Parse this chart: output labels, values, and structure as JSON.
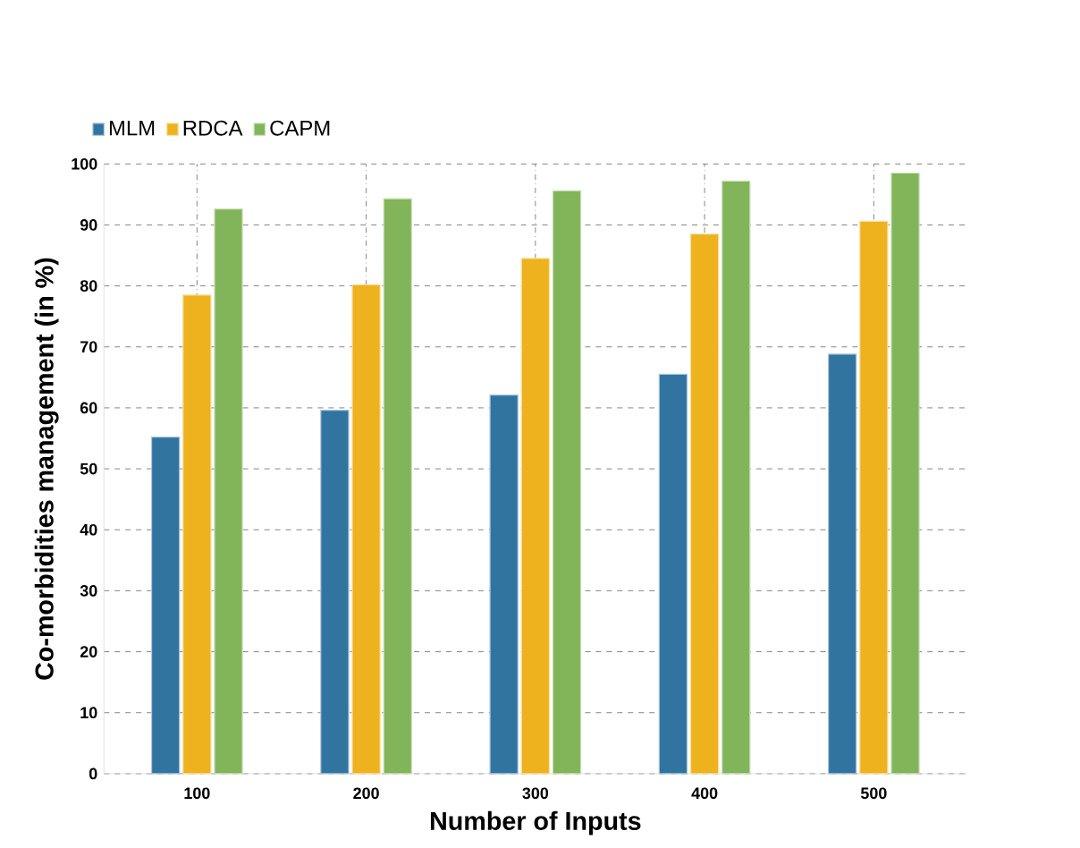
{
  "chart_data": {
    "type": "bar",
    "xlabel": "Number of Inputs",
    "ylabel": "Co-morbidities management (in %)",
    "categories": [
      "100",
      "200",
      "300",
      "400",
      "500"
    ],
    "series": [
      {
        "name": "MLM",
        "color": "#31749f",
        "values": [
          55.2,
          59.6,
          62.1,
          65.5,
          68.8
        ]
      },
      {
        "name": "RDCA",
        "color": "#eeb21f",
        "values": [
          78.5,
          80.2,
          84.5,
          88.5,
          90.6
        ]
      },
      {
        "name": "CAPM",
        "color": "#82b45a",
        "values": [
          92.6,
          94.3,
          95.6,
          97.2,
          98.5
        ]
      }
    ],
    "ylim": [
      0,
      100
    ],
    "yticks": [
      0,
      10,
      20,
      30,
      40,
      50,
      60,
      70,
      80,
      90,
      100
    ],
    "grid": true,
    "legend": "top left"
  }
}
